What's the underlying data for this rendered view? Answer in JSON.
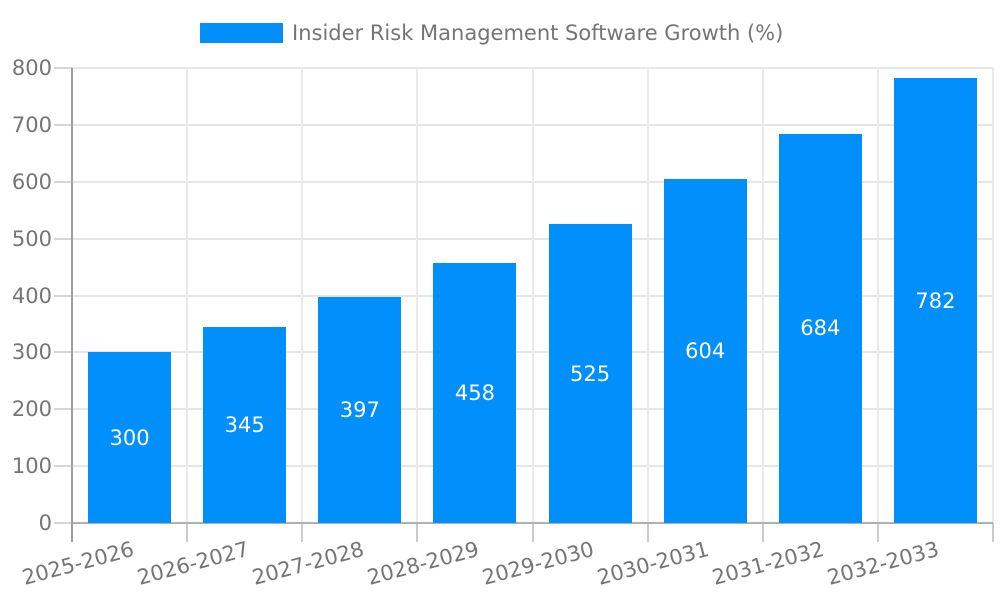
{
  "chart_data": {
    "type": "bar",
    "title": "Insider Risk Management Software Growth (%)",
    "legend": {
      "position": "top",
      "label": "Insider Risk Management Software Growth (%)",
      "swatch_color": "#008FFB"
    },
    "categories": [
      "2025-2026",
      "2026-2027",
      "2027-2028",
      "2028-2029",
      "2029-2030",
      "2030-2031",
      "2031-2032",
      "2032-2033"
    ],
    "values": [
      300,
      345,
      397,
      458,
      525,
      604,
      684,
      782
    ],
    "value_labels": [
      "300",
      "345",
      "397",
      "458",
      "525",
      "604",
      "684",
      "782"
    ],
    "xlabel": "",
    "ylabel": "",
    "ylim": [
      0,
      800
    ],
    "yticks": [
      0,
      100,
      200,
      300,
      400,
      500,
      600,
      700,
      800
    ],
    "grid": true,
    "colors": {
      "bar": "#008FFB",
      "value_label_text": "#ffffff",
      "axis_text": "#757575",
      "gridline": "#e6e6e6",
      "y_axis_line": "#9e9e9e",
      "x_axis_line": "#b0b0b0",
      "tick": "#cccccc",
      "background": "#ffffff"
    }
  }
}
